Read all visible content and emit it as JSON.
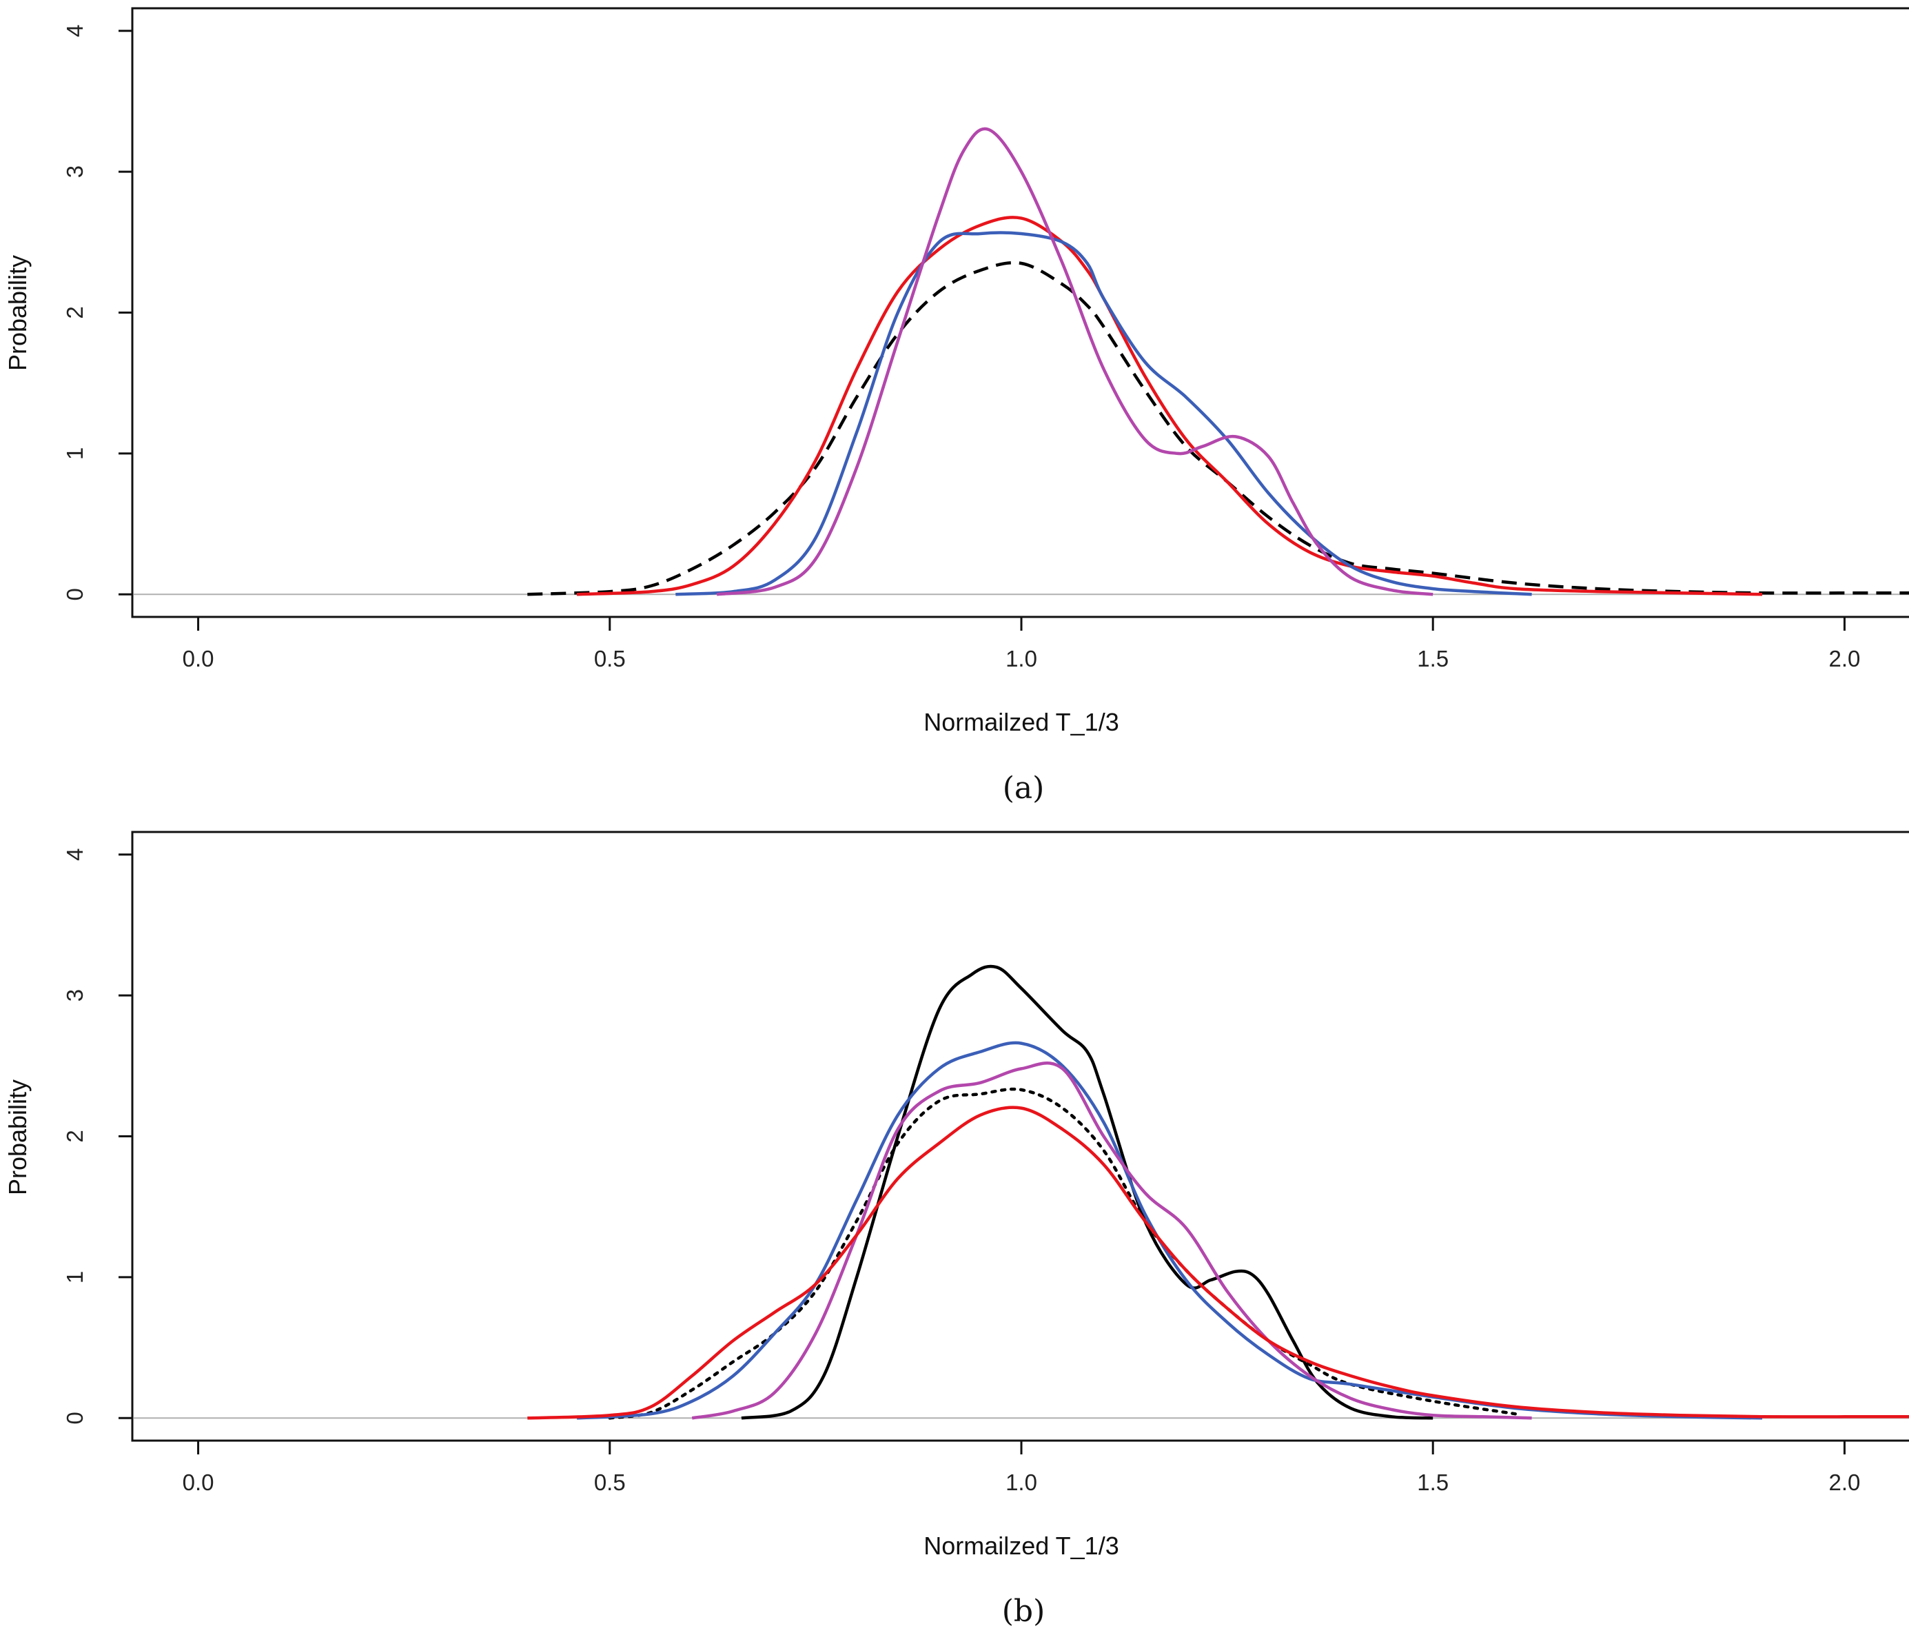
{
  "chart_data": [
    {
      "type": "line",
      "panel_label": "(a)",
      "xlabel": "Normailzed T_1/3",
      "ylabel": "Probability",
      "xlim": [
        -0.08,
        2.08
      ],
      "ylim": [
        -0.16,
        4.16
      ],
      "xticks": [
        "0.0",
        "0.5",
        "1.0",
        "1.5",
        "2.0"
      ],
      "yticks": [
        "0",
        "1",
        "2",
        "3",
        "4"
      ],
      "baseline_color": "#b0b0b0",
      "series": [
        {
          "color": "#000000",
          "style": "dashed",
          "x": [
            0.4,
            0.5,
            0.55,
            0.6,
            0.65,
            0.7,
            0.75,
            0.8,
            0.85,
            0.9,
            0.95,
            1.0,
            1.05,
            1.08,
            1.1,
            1.15,
            1.2,
            1.25,
            1.3,
            1.35,
            1.4,
            1.45,
            1.5,
            1.6,
            1.7,
            1.8,
            1.9,
            2.0,
            2.08
          ],
          "y": [
            0.0,
            0.02,
            0.06,
            0.18,
            0.35,
            0.58,
            0.9,
            1.4,
            1.85,
            2.15,
            2.3,
            2.35,
            2.2,
            2.05,
            1.9,
            1.45,
            1.05,
            0.8,
            0.55,
            0.35,
            0.22,
            0.18,
            0.15,
            0.08,
            0.04,
            0.02,
            0.01,
            0.01,
            0.01
          ]
        },
        {
          "color": "#e8141b",
          "style": "solid",
          "x": [
            0.46,
            0.55,
            0.6,
            0.65,
            0.7,
            0.75,
            0.8,
            0.85,
            0.9,
            0.95,
            1.0,
            1.05,
            1.08,
            1.1,
            1.15,
            1.2,
            1.25,
            1.3,
            1.35,
            1.4,
            1.45,
            1.5,
            1.55,
            1.6,
            1.7,
            1.8,
            1.9
          ],
          "y": [
            0.0,
            0.02,
            0.07,
            0.2,
            0.5,
            0.95,
            1.6,
            2.15,
            2.45,
            2.62,
            2.67,
            2.5,
            2.3,
            2.1,
            1.55,
            1.1,
            0.8,
            0.5,
            0.3,
            0.2,
            0.16,
            0.13,
            0.08,
            0.04,
            0.02,
            0.01,
            0.0
          ]
        },
        {
          "color": "#3b5fb8",
          "style": "solid",
          "x": [
            0.58,
            0.65,
            0.7,
            0.75,
            0.8,
            0.85,
            0.9,
            0.95,
            1.0,
            1.05,
            1.08,
            1.1,
            1.15,
            1.2,
            1.25,
            1.3,
            1.35,
            1.4,
            1.45,
            1.5,
            1.55,
            1.62
          ],
          "y": [
            0.0,
            0.02,
            0.1,
            0.4,
            1.15,
            2.0,
            2.5,
            2.56,
            2.56,
            2.5,
            2.35,
            2.1,
            1.65,
            1.4,
            1.1,
            0.72,
            0.42,
            0.2,
            0.09,
            0.04,
            0.02,
            0.0
          ]
        },
        {
          "color": "#b347ac",
          "style": "solid",
          "x": [
            0.63,
            0.7,
            0.75,
            0.8,
            0.85,
            0.9,
            0.93,
            0.96,
            1.0,
            1.05,
            1.1,
            1.15,
            1.19,
            1.22,
            1.26,
            1.3,
            1.33,
            1.36,
            1.4,
            1.45,
            1.5
          ],
          "y": [
            0.0,
            0.05,
            0.25,
            0.9,
            1.8,
            2.7,
            3.15,
            3.3,
            3.0,
            2.35,
            1.6,
            1.1,
            1.0,
            1.05,
            1.12,
            0.98,
            0.65,
            0.35,
            0.12,
            0.03,
            0.0
          ]
        }
      ]
    },
    {
      "type": "line",
      "panel_label": "(b)",
      "xlabel": "Normailzed T_1/3",
      "ylabel": "Probability",
      "xlim": [
        -0.08,
        2.08
      ],
      "ylim": [
        -0.16,
        4.16
      ],
      "xticks": [
        "0.0",
        "0.5",
        "1.0",
        "1.5",
        "2.0"
      ],
      "yticks": [
        "0",
        "1",
        "2",
        "3",
        "4"
      ],
      "baseline_color": "#b0b0b0",
      "series": [
        {
          "color": "#000000",
          "style": "solid",
          "x": [
            0.66,
            0.72,
            0.76,
            0.8,
            0.85,
            0.9,
            0.94,
            0.97,
            1.0,
            1.05,
            1.08,
            1.1,
            1.15,
            1.2,
            1.23,
            1.26,
            1.28,
            1.3,
            1.33,
            1.36,
            1.4,
            1.45,
            1.5
          ],
          "y": [
            0.0,
            0.05,
            0.3,
            1.0,
            2.0,
            2.9,
            3.15,
            3.2,
            3.05,
            2.75,
            2.6,
            2.3,
            1.4,
            0.95,
            0.98,
            1.04,
            1.02,
            0.88,
            0.55,
            0.25,
            0.07,
            0.01,
            0.0
          ]
        },
        {
          "color": "#000000",
          "style": "dotted",
          "x": [
            0.5,
            0.55,
            0.6,
            0.65,
            0.7,
            0.75,
            0.8,
            0.85,
            0.9,
            0.95,
            1.0,
            1.05,
            1.1,
            1.15,
            1.2,
            1.25,
            1.3,
            1.35,
            1.4,
            1.5,
            1.6
          ],
          "y": [
            0.0,
            0.04,
            0.2,
            0.4,
            0.6,
            0.9,
            1.4,
            1.95,
            2.25,
            2.3,
            2.33,
            2.2,
            1.9,
            1.4,
            1.05,
            0.78,
            0.55,
            0.38,
            0.24,
            0.12,
            0.03
          ]
        },
        {
          "color": "#3b5fb8",
          "style": "solid",
          "x": [
            0.46,
            0.55,
            0.6,
            0.65,
            0.7,
            0.75,
            0.8,
            0.85,
            0.9,
            0.95,
            1.0,
            1.05,
            1.1,
            1.15,
            1.2,
            1.25,
            1.3,
            1.35,
            1.4,
            1.5,
            1.6,
            1.7,
            1.8,
            1.9
          ],
          "y": [
            0.0,
            0.03,
            0.12,
            0.3,
            0.6,
            0.95,
            1.55,
            2.15,
            2.48,
            2.6,
            2.66,
            2.5,
            2.1,
            1.45,
            0.98,
            0.68,
            0.45,
            0.28,
            0.24,
            0.15,
            0.07,
            0.03,
            0.01,
            0.0
          ]
        },
        {
          "color": "#b347ac",
          "style": "solid",
          "x": [
            0.6,
            0.65,
            0.7,
            0.75,
            0.8,
            0.85,
            0.9,
            0.95,
            1.0,
            1.05,
            1.1,
            1.15,
            1.2,
            1.25,
            1.3,
            1.35,
            1.4,
            1.45,
            1.5,
            1.56,
            1.62
          ],
          "y": [
            0.0,
            0.05,
            0.18,
            0.6,
            1.3,
            2.05,
            2.32,
            2.38,
            2.48,
            2.48,
            2.0,
            1.6,
            1.35,
            0.9,
            0.55,
            0.3,
            0.14,
            0.06,
            0.02,
            0.01,
            0.0
          ]
        },
        {
          "color": "#e8141b",
          "style": "solid",
          "x": [
            0.4,
            0.5,
            0.55,
            0.6,
            0.65,
            0.7,
            0.75,
            0.8,
            0.85,
            0.9,
            0.95,
            1.0,
            1.05,
            1.1,
            1.15,
            1.2,
            1.25,
            1.3,
            1.35,
            1.4,
            1.45,
            1.5,
            1.6,
            1.7,
            1.8,
            1.9,
            2.0,
            2.08
          ],
          "y": [
            0.0,
            0.02,
            0.08,
            0.3,
            0.55,
            0.75,
            0.95,
            1.3,
            1.7,
            1.95,
            2.15,
            2.2,
            2.05,
            1.8,
            1.4,
            1.05,
            0.78,
            0.55,
            0.4,
            0.3,
            0.22,
            0.16,
            0.08,
            0.04,
            0.02,
            0.01,
            0.01,
            0.01
          ]
        }
      ]
    }
  ]
}
